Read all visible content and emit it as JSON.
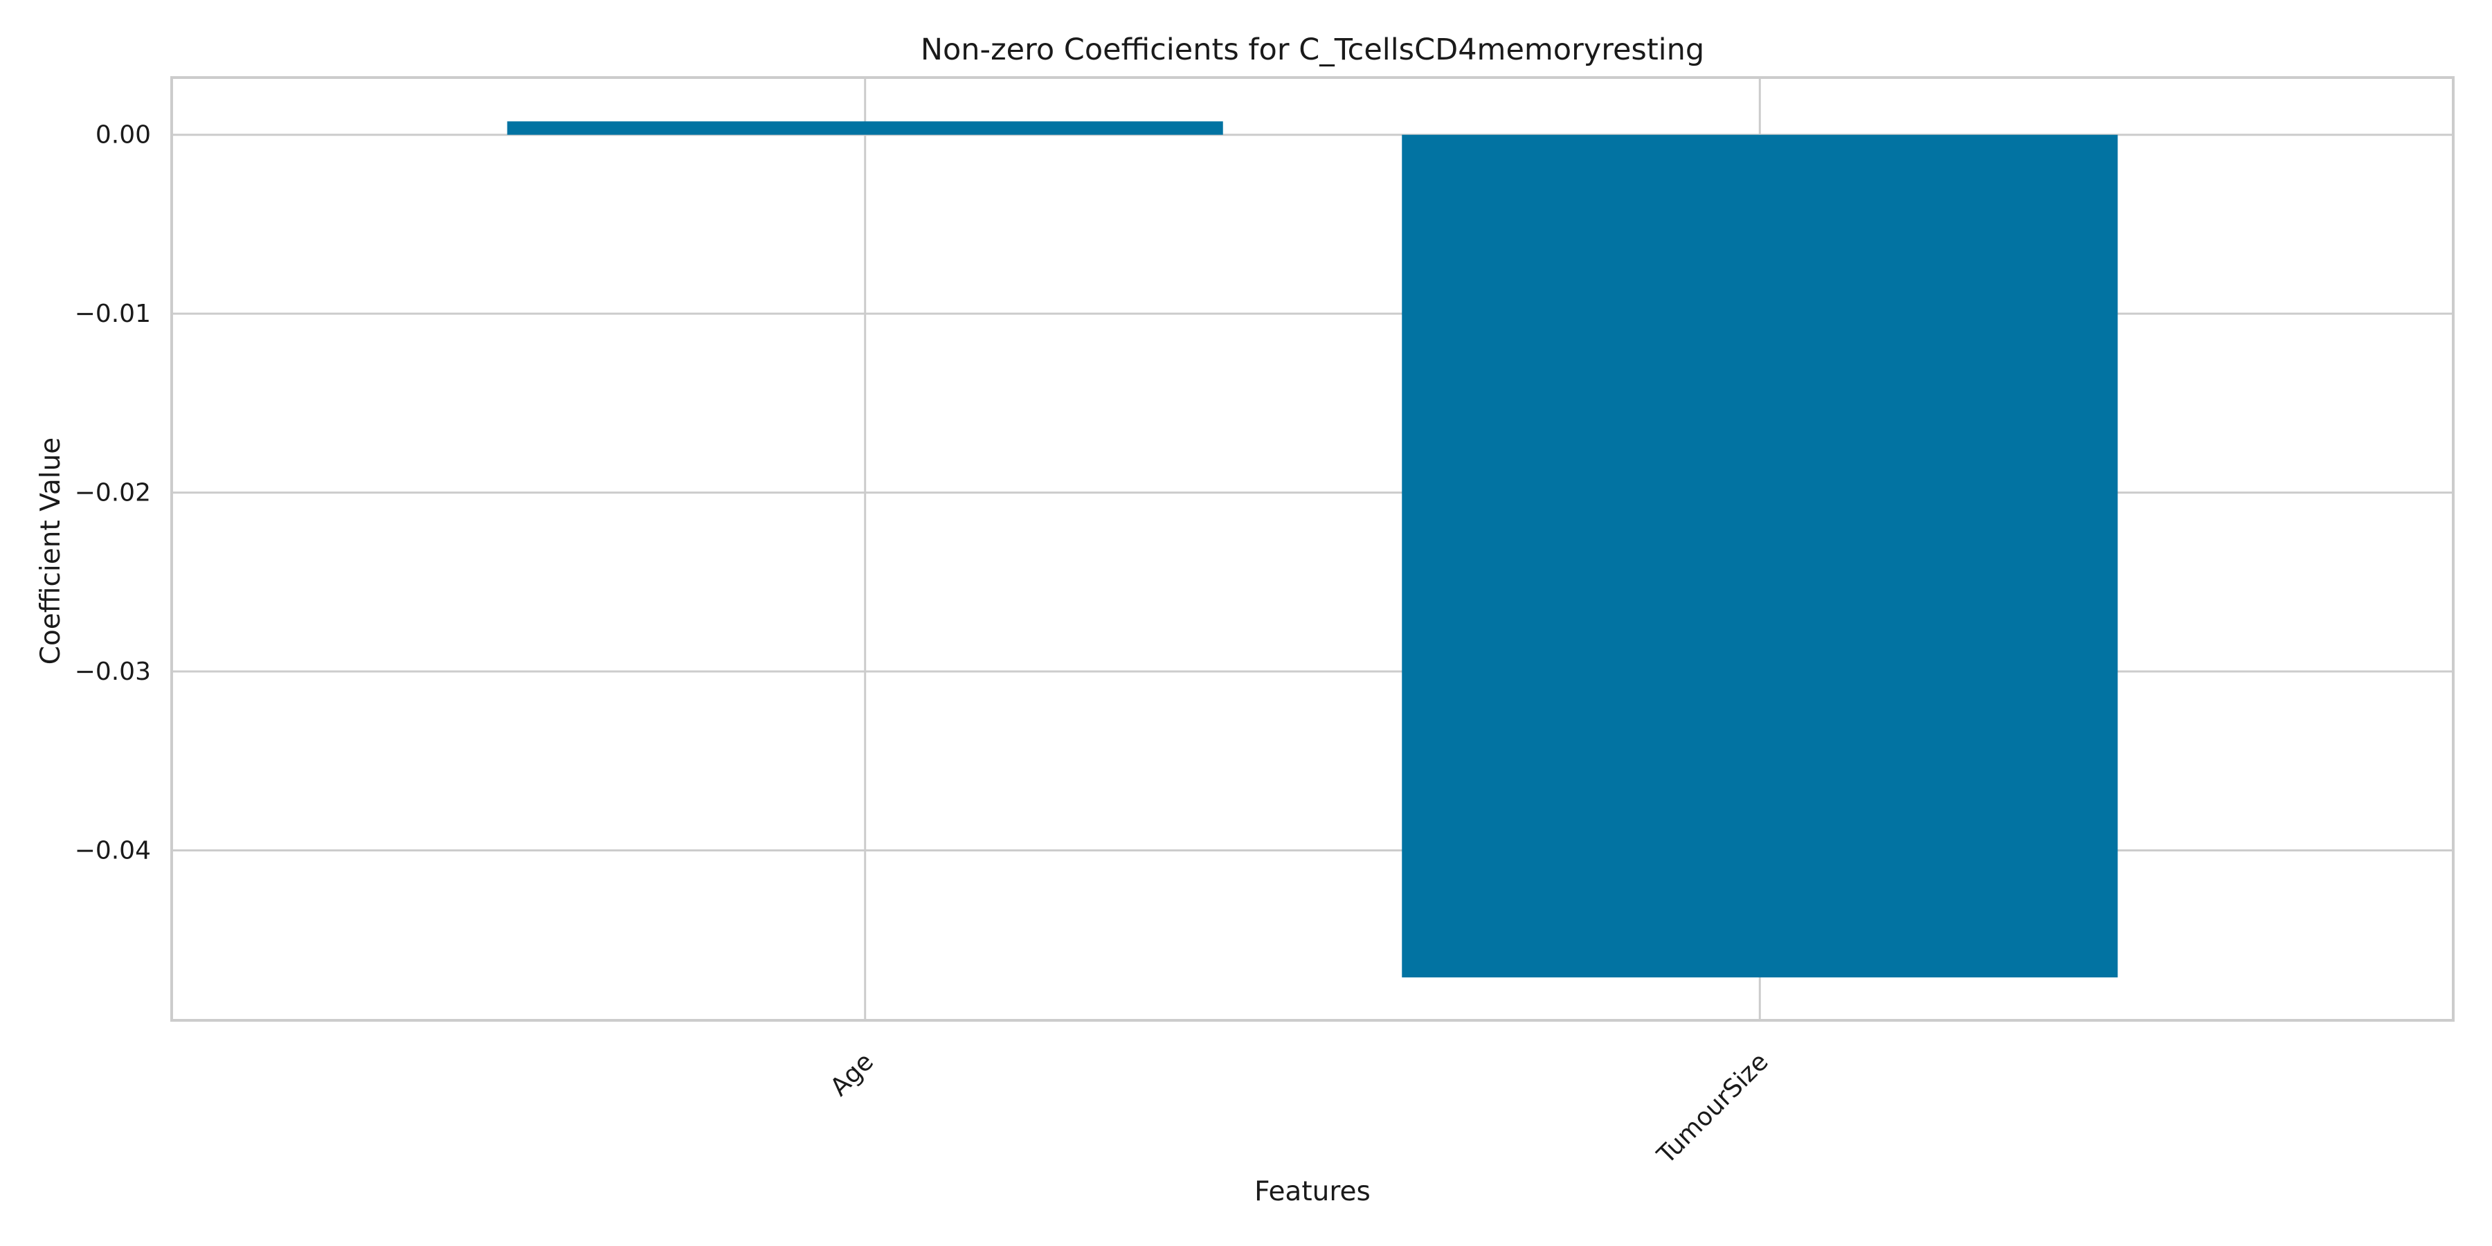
{
  "chart_data": {
    "type": "bar",
    "title": "Non-zero Coefficients for C_TcellsCD4memoryresting",
    "xlabel": "Features",
    "ylabel": "Coefficient Value",
    "categories": [
      "Age",
      "TumourSize"
    ],
    "values": [
      0.00075,
      -0.0471
    ],
    "ylim": [
      -0.0495,
      0.0032
    ],
    "yticks": [
      0.0,
      -0.01,
      -0.02,
      -0.03,
      -0.04
    ],
    "ytick_labels": [
      "0.00",
      "−0.01",
      "−0.02",
      "−0.03",
      "−0.04"
    ],
    "grid": true,
    "x_tick_rotation": -45,
    "bar_color": "#0273a2",
    "grid_color": "#cccccc"
  }
}
